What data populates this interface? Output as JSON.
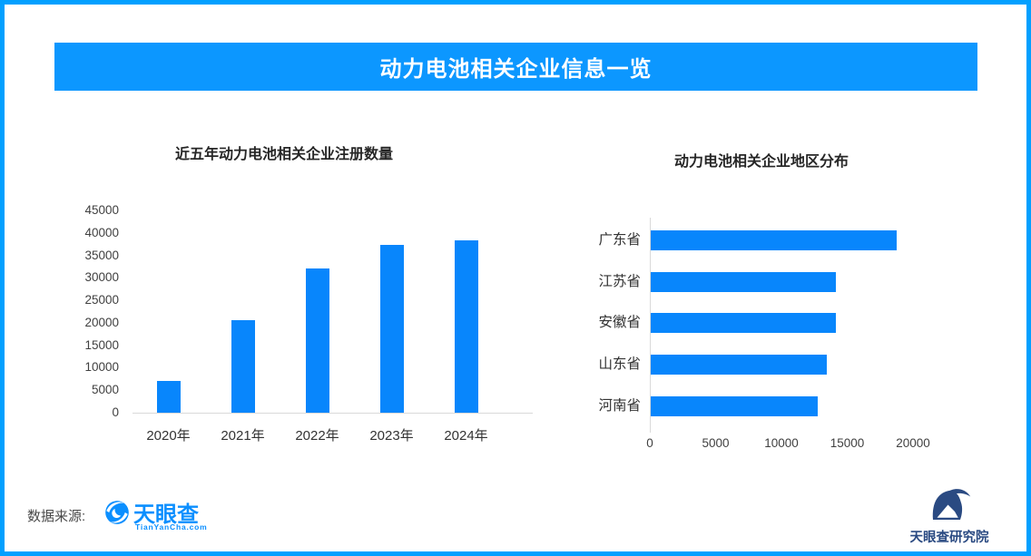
{
  "header": {
    "title": "动力电池相关企业信息一览"
  },
  "chart_data": [
    {
      "type": "bar",
      "title": "近五年动力电池相关企业注册数量",
      "categories": [
        "2020年",
        "2021年",
        "2022年",
        "2023年",
        "2024年"
      ],
      "values": [
        7100,
        20600,
        32000,
        37400,
        38400
      ],
      "xlabel": "",
      "ylabel": "",
      "ylim": [
        0,
        45000
      ],
      "ytick_step": 5000,
      "grid": false,
      "legend": "none",
      "bar_color": "#0886fc"
    },
    {
      "type": "bar-horizontal",
      "title": "动力电池相关企业地区分布",
      "categories": [
        "广东省",
        "江苏省",
        "安徽省",
        "山东省",
        "河南省"
      ],
      "values": [
        18700,
        14100,
        14100,
        13400,
        12700
      ],
      "xlabel": "",
      "ylabel": "",
      "xlim": [
        0,
        20000
      ],
      "xtick_step": 5000,
      "grid": false,
      "legend": "none",
      "bar_color": "#0886fc"
    }
  ],
  "footer": {
    "source_label": "数据来源:",
    "brand_name": "天眼查",
    "brand_url_text": "TianYanCha.com",
    "institute_name": "天眼查研究院"
  },
  "colors": {
    "banner_blue": "#0c97ff",
    "border_blue": "#02a0ff",
    "bar_blue": "#0886fc",
    "brand_blue": "#0b8fff",
    "institute_navy": "#2a4a82",
    "axis_gray": "#d9d9d9",
    "tick_text": "#404040"
  }
}
